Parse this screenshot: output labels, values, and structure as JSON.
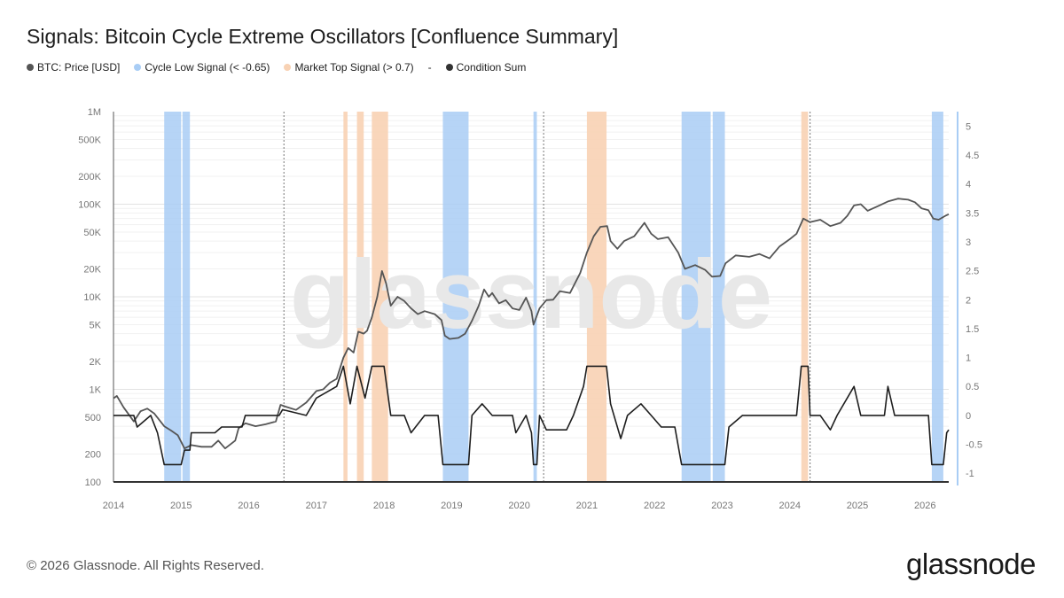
{
  "title": "Signals: Bitcoin Cycle Extreme Oscillators [Confluence Summary]",
  "legend": [
    {
      "label": "BTC: Price [USD]",
      "color": "#555555"
    },
    {
      "label": "Cycle Low Signal (< -0.65)",
      "color": "#a9cdf5"
    },
    {
      "label": "Market Top Signal (> 0.7)",
      "color": "#f8d2b4"
    },
    {
      "label": "-",
      "color": ""
    },
    {
      "label": "Condition Sum",
      "color": "#333333"
    }
  ],
  "footer": "© 2026 Glassnode. All Rights Reserved.",
  "brand": "glassnode",
  "watermark": "glassnode",
  "colors": {
    "price": "#555555",
    "condition": "#1e1e1e",
    "low_band": "#a9cdf5",
    "top_band": "#f8d2b4",
    "right_axis": "#a9cdf5"
  },
  "chart_data": {
    "type": "line",
    "x_range": [
      2014.0,
      2026.35
    ],
    "x_ticks": [
      "2014",
      "2015",
      "2016",
      "2017",
      "2018",
      "2019",
      "2020",
      "2021",
      "2022",
      "2023",
      "2024",
      "2025",
      "2026"
    ],
    "y_left": {
      "scale": "log",
      "range": [
        100,
        1000000
      ],
      "ticks": [
        {
          "v": 100,
          "label": "100"
        },
        {
          "v": 200,
          "label": "200"
        },
        {
          "v": 500,
          "label": "500"
        },
        {
          "v": 1000,
          "label": "1K"
        },
        {
          "v": 2000,
          "label": "2K"
        },
        {
          "v": 5000,
          "label": "5K"
        },
        {
          "v": 10000,
          "label": "10K"
        },
        {
          "v": 20000,
          "label": "20K"
        },
        {
          "v": 50000,
          "label": "50K"
        },
        {
          "v": 100000,
          "label": "100K"
        },
        {
          "v": 200000,
          "label": "200K"
        },
        {
          "v": 500000,
          "label": "500K"
        },
        {
          "v": 1000000,
          "label": "1M"
        }
      ]
    },
    "y_right": {
      "scale": "linear",
      "range": [
        -1.15,
        5.25
      ],
      "ticks": [
        {
          "v": 5,
          "label": "5"
        },
        {
          "v": 4.5,
          "label": "4.5"
        },
        {
          "v": 4,
          "label": "4"
        },
        {
          "v": 3.5,
          "label": "3.5"
        },
        {
          "v": 3,
          "label": "3"
        },
        {
          "v": 2.5,
          "label": "2.5"
        },
        {
          "v": 2,
          "label": "2"
        },
        {
          "v": 1.5,
          "label": "1.5"
        },
        {
          "v": 1,
          "label": "1"
        },
        {
          "v": 0.5,
          "label": "0.5"
        },
        {
          "v": 0,
          "label": "0"
        },
        {
          "v": -0.5,
          "label": "-0.5"
        },
        {
          "v": -1,
          "label": "-1"
        }
      ]
    },
    "halving_lines": [
      2016.52,
      2020.36,
      2024.3
    ],
    "cycle_low_signal": [
      [
        2014.75,
        2015.0
      ],
      [
        2015.02,
        2015.13
      ],
      [
        2018.87,
        2019.25
      ],
      [
        2020.21,
        2020.26
      ],
      [
        2022.4,
        2022.83
      ],
      [
        2022.86,
        2023.04
      ],
      [
        2026.1,
        2026.27
      ]
    ],
    "market_top_signal": [
      [
        2017.4,
        2017.46
      ],
      [
        2017.6,
        2017.7
      ],
      [
        2017.82,
        2018.06
      ],
      [
        2021.0,
        2021.29
      ],
      [
        2024.17,
        2024.27
      ]
    ],
    "series": [
      {
        "name": "BTC: Price [USD]",
        "axis": "left",
        "points": [
          [
            2014.0,
            800
          ],
          [
            2014.05,
            850
          ],
          [
            2014.15,
            640
          ],
          [
            2014.3,
            450
          ],
          [
            2014.4,
            580
          ],
          [
            2014.5,
            620
          ],
          [
            2014.6,
            550
          ],
          [
            2014.75,
            400
          ],
          [
            2014.85,
            360
          ],
          [
            2014.95,
            320
          ],
          [
            2015.05,
            230
          ],
          [
            2015.15,
            250
          ],
          [
            2015.3,
            240
          ],
          [
            2015.45,
            240
          ],
          [
            2015.55,
            280
          ],
          [
            2015.65,
            230
          ],
          [
            2015.8,
            280
          ],
          [
            2015.85,
            380
          ],
          [
            2015.95,
            430
          ],
          [
            2016.1,
            400
          ],
          [
            2016.25,
            420
          ],
          [
            2016.4,
            450
          ],
          [
            2016.47,
            680
          ],
          [
            2016.55,
            650
          ],
          [
            2016.7,
            600
          ],
          [
            2016.85,
            720
          ],
          [
            2017.0,
            960
          ],
          [
            2017.1,
            1000
          ],
          [
            2017.2,
            1180
          ],
          [
            2017.3,
            1300
          ],
          [
            2017.4,
            2200
          ],
          [
            2017.47,
            2800
          ],
          [
            2017.55,
            2500
          ],
          [
            2017.62,
            4200
          ],
          [
            2017.7,
            4000
          ],
          [
            2017.75,
            4300
          ],
          [
            2017.82,
            6000
          ],
          [
            2017.9,
            10000
          ],
          [
            2017.97,
            19000
          ],
          [
            2018.03,
            14000
          ],
          [
            2018.1,
            8000
          ],
          [
            2018.2,
            10000
          ],
          [
            2018.3,
            9000
          ],
          [
            2018.4,
            7500
          ],
          [
            2018.5,
            6500
          ],
          [
            2018.6,
            7000
          ],
          [
            2018.75,
            6500
          ],
          [
            2018.85,
            5600
          ],
          [
            2018.9,
            3800
          ],
          [
            2018.97,
            3500
          ],
          [
            2019.1,
            3600
          ],
          [
            2019.2,
            4000
          ],
          [
            2019.3,
            5500
          ],
          [
            2019.4,
            8000
          ],
          [
            2019.48,
            12000
          ],
          [
            2019.55,
            10000
          ],
          [
            2019.6,
            11000
          ],
          [
            2019.7,
            8500
          ],
          [
            2019.8,
            9200
          ],
          [
            2019.9,
            7500
          ],
          [
            2020.0,
            7200
          ],
          [
            2020.1,
            9800
          ],
          [
            2020.18,
            7000
          ],
          [
            2020.21,
            5000
          ],
          [
            2020.3,
            7500
          ],
          [
            2020.4,
            9200
          ],
          [
            2020.5,
            9300
          ],
          [
            2020.6,
            11500
          ],
          [
            2020.75,
            11000
          ],
          [
            2020.9,
            18000
          ],
          [
            2021.0,
            30000
          ],
          [
            2021.1,
            45000
          ],
          [
            2021.2,
            57000
          ],
          [
            2021.3,
            58000
          ],
          [
            2021.35,
            40000
          ],
          [
            2021.45,
            33000
          ],
          [
            2021.55,
            40000
          ],
          [
            2021.7,
            45000
          ],
          [
            2021.85,
            63000
          ],
          [
            2021.95,
            48000
          ],
          [
            2022.05,
            42000
          ],
          [
            2022.2,
            44000
          ],
          [
            2022.35,
            30000
          ],
          [
            2022.45,
            20000
          ],
          [
            2022.6,
            22000
          ],
          [
            2022.75,
            19500
          ],
          [
            2022.85,
            16500
          ],
          [
            2022.97,
            16800
          ],
          [
            2023.05,
            23000
          ],
          [
            2023.2,
            28000
          ],
          [
            2023.4,
            27000
          ],
          [
            2023.55,
            29000
          ],
          [
            2023.7,
            26000
          ],
          [
            2023.85,
            35000
          ],
          [
            2024.0,
            42000
          ],
          [
            2024.1,
            48000
          ],
          [
            2024.2,
            70000
          ],
          [
            2024.3,
            64000
          ],
          [
            2024.45,
            68000
          ],
          [
            2024.6,
            58000
          ],
          [
            2024.75,
            63000
          ],
          [
            2024.85,
            75000
          ],
          [
            2024.95,
            97000
          ],
          [
            2025.05,
            100000
          ],
          [
            2025.15,
            85000
          ],
          [
            2025.3,
            95000
          ],
          [
            2025.45,
            107000
          ],
          [
            2025.6,
            115000
          ],
          [
            2025.75,
            112000
          ],
          [
            2025.85,
            105000
          ],
          [
            2025.95,
            90000
          ],
          [
            2026.05,
            86000
          ],
          [
            2026.12,
            70000
          ],
          [
            2026.2,
            68000
          ],
          [
            2026.3,
            75000
          ],
          [
            2026.35,
            78000
          ]
        ]
      },
      {
        "name": "Condition Sum",
        "axis": "right",
        "points": [
          [
            2014.0,
            0
          ],
          [
            2014.3,
            0
          ],
          [
            2014.35,
            -0.2
          ],
          [
            2014.55,
            0
          ],
          [
            2014.65,
            -0.3
          ],
          [
            2014.75,
            -0.85
          ],
          [
            2015.0,
            -0.85
          ],
          [
            2015.05,
            -0.6
          ],
          [
            2015.13,
            -0.6
          ],
          [
            2015.15,
            -0.3
          ],
          [
            2015.5,
            -0.3
          ],
          [
            2015.6,
            -0.2
          ],
          [
            2015.9,
            -0.2
          ],
          [
            2015.95,
            0
          ],
          [
            2016.45,
            0
          ],
          [
            2016.5,
            0.1
          ],
          [
            2016.85,
            0
          ],
          [
            2017.0,
            0.3
          ],
          [
            2017.3,
            0.5
          ],
          [
            2017.4,
            0.85
          ],
          [
            2017.5,
            0.2
          ],
          [
            2017.6,
            0.85
          ],
          [
            2017.72,
            0.3
          ],
          [
            2017.82,
            0.85
          ],
          [
            2018.0,
            0.85
          ],
          [
            2018.1,
            0
          ],
          [
            2018.3,
            0
          ],
          [
            2018.4,
            -0.3
          ],
          [
            2018.6,
            0
          ],
          [
            2018.8,
            0
          ],
          [
            2018.87,
            -0.85
          ],
          [
            2019.25,
            -0.85
          ],
          [
            2019.3,
            0
          ],
          [
            2019.45,
            0.2
          ],
          [
            2019.6,
            0
          ],
          [
            2019.9,
            0
          ],
          [
            2019.95,
            -0.3
          ],
          [
            2020.1,
            0
          ],
          [
            2020.18,
            -0.3
          ],
          [
            2020.21,
            -0.85
          ],
          [
            2020.26,
            -0.85
          ],
          [
            2020.3,
            0
          ],
          [
            2020.4,
            -0.25
          ],
          [
            2020.7,
            -0.25
          ],
          [
            2020.8,
            0
          ],
          [
            2020.95,
            0.5
          ],
          [
            2021.0,
            0.85
          ],
          [
            2021.29,
            0.85
          ],
          [
            2021.35,
            0.2
          ],
          [
            2021.5,
            -0.4
          ],
          [
            2021.6,
            0
          ],
          [
            2021.8,
            0.2
          ],
          [
            2021.95,
            0
          ],
          [
            2022.1,
            -0.2
          ],
          [
            2022.3,
            -0.2
          ],
          [
            2022.4,
            -0.85
          ],
          [
            2023.04,
            -0.85
          ],
          [
            2023.1,
            -0.2
          ],
          [
            2023.3,
            0
          ],
          [
            2024.1,
            0
          ],
          [
            2024.17,
            0.85
          ],
          [
            2024.27,
            0.85
          ],
          [
            2024.3,
            0
          ],
          [
            2024.45,
            0
          ],
          [
            2024.6,
            -0.25
          ],
          [
            2024.7,
            0
          ],
          [
            2024.95,
            0.5
          ],
          [
            2025.05,
            0
          ],
          [
            2025.4,
            0
          ],
          [
            2025.45,
            0.5
          ],
          [
            2025.55,
            0
          ],
          [
            2025.75,
            0
          ],
          [
            2026.05,
            0
          ],
          [
            2026.1,
            -0.85
          ],
          [
            2026.27,
            -0.85
          ],
          [
            2026.32,
            -0.3
          ],
          [
            2026.35,
            -0.25
          ]
        ]
      }
    ],
    "grid": true,
    "legend_position": "top-left"
  }
}
